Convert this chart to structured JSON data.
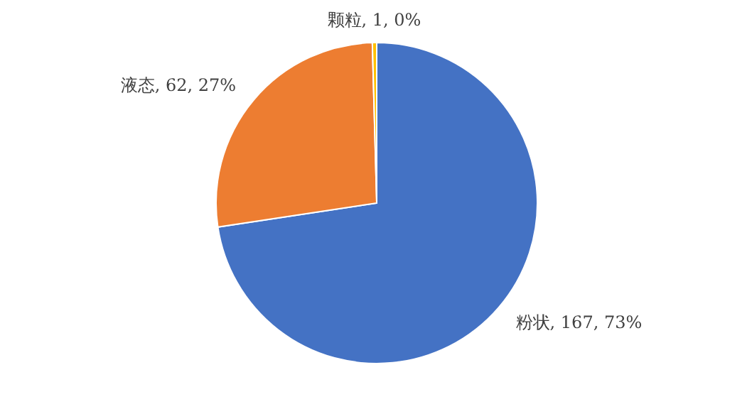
{
  "chart_data": {
    "type": "pie",
    "categories": [
      "粉状",
      "液态",
      "颗粒"
    ],
    "values": [
      167,
      62,
      1
    ],
    "colors": [
      "#4472c4",
      "#ed7d31",
      "#ffc000"
    ],
    "value_labels": [
      "167, 73%",
      "62, 27%",
      "1, 0%"
    ]
  }
}
